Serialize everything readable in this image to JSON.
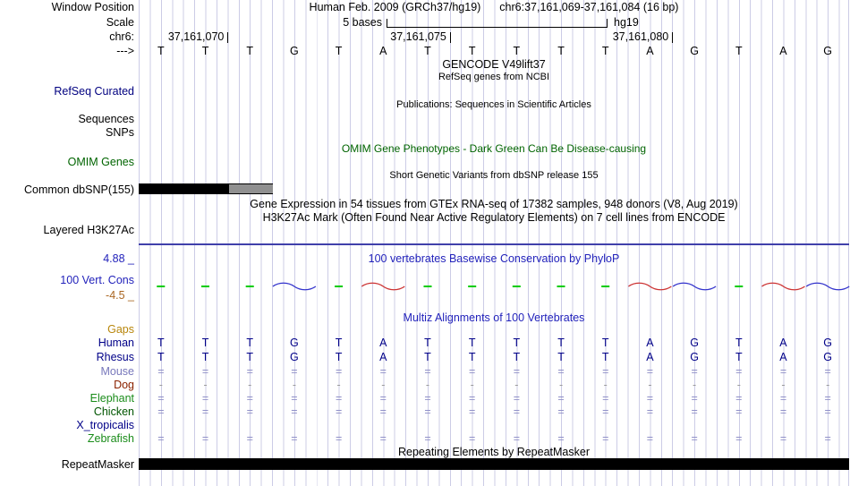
{
  "header": {
    "assembly": "Human Feb. 2009 (GRCh37/hg19)",
    "position": "chr6:37,161,069-37,161,084 (16 bp)"
  },
  "labels": {
    "window_position": "Window Position",
    "scale": "Scale",
    "chrom": "chr6:",
    "strand_arrow": "--->",
    "refseq_curated": "RefSeq Curated",
    "sequences": "Sequences",
    "snps": "SNPs",
    "omim_genes": "OMIM Genes",
    "common_dbsnp": "Common dbSNP(155)",
    "layered_h3k27ac": "Layered H3K27Ac",
    "cons_max": "4.88 _",
    "cons_track": "100 Vert. Cons",
    "cons_min": "-4.5 _",
    "repeatmasker": "RepeatMasker"
  },
  "scale_bar": {
    "text": "5 bases",
    "genome": "hg19"
  },
  "ruler_ticks": [
    {
      "label": "37,161,070",
      "base_index": 1
    },
    {
      "label": "37,161,075",
      "base_index": 6
    },
    {
      "label": "37,161,080",
      "base_index": 11
    }
  ],
  "sequence_bases": [
    "T",
    "T",
    "T",
    "G",
    "T",
    "A",
    "T",
    "T",
    "T",
    "T",
    "T",
    "A",
    "G",
    "T",
    "A",
    "G"
  ],
  "center_titles": {
    "gencode": "GENCODE V49lift37",
    "refseq_desc": "RefSeq genes from NCBI",
    "publications": "Publications: Sequences in Scientific Articles",
    "omim": "OMIM Gene Phenotypes - Dark Green Can Be Disease-causing",
    "dbsnp": "Short Genetic Variants from dbSNP release 155",
    "gtex": "Gene Expression in 54 tissues from GTEx RNA-seq of 17382 samples, 948 donors (V8, Aug 2019)",
    "h3k27ac": "H3K27Ac Mark (Often Found Near Active Regulatory Elements) on 7 cell lines from ENCODE",
    "phylop": "100 vertebrates Basewise Conservation by PhyloP",
    "multiz": "Multiz Alignments of 100 Vertebrates",
    "repeat": "Repeating Elements by RepeatMasker"
  },
  "colors": {
    "grid": "#cccce6",
    "title_blue": "#2222bb",
    "refseq_blue": "#000080",
    "omim_green": "#006400",
    "gaps_orange": "#b8860b",
    "cons_min_orange": "#aa6622",
    "h3k27ac_line": "#4040aa",
    "bar_black": "#000000",
    "bar_gray": "#909090"
  },
  "alignment_rows": [
    {
      "name": "Gaps",
      "name_color": "#b8860b",
      "cell_color": "#9191c8",
      "cells": []
    },
    {
      "name": "Human",
      "name_color": "#000088",
      "cell_color": "#000088",
      "cells": [
        "T",
        "T",
        "T",
        "G",
        "T",
        "A",
        "T",
        "T",
        "T",
        "T",
        "T",
        "A",
        "G",
        "T",
        "A",
        "G"
      ]
    },
    {
      "name": "Rhesus",
      "name_color": "#000088",
      "cell_color": "#000088",
      "cells": [
        "T",
        "T",
        "T",
        "G",
        "T",
        "A",
        "T",
        "T",
        "T",
        "T",
        "T",
        "A",
        "G",
        "T",
        "A",
        "G"
      ]
    },
    {
      "name": "Mouse",
      "name_color": "#7777bb",
      "cell_color": "#9191c8",
      "cells": [
        "=",
        "=",
        "=",
        "=",
        "=",
        "=",
        "=",
        "=",
        "=",
        "=",
        "=",
        "=",
        "=",
        "=",
        "=",
        "="
      ]
    },
    {
      "name": "Dog",
      "name_color": "#8b2200",
      "cell_color": "#9a9a9a",
      "cells": [
        "-",
        "-",
        "-",
        "-",
        "-",
        "-",
        "-",
        "-",
        "-",
        "-",
        "-",
        "-",
        "-",
        "-",
        "-",
        "-"
      ]
    },
    {
      "name": "Elephant",
      "name_color": "#1a8c1a",
      "cell_color": "#9191c8",
      "cells": [
        "=",
        "=",
        "=",
        "=",
        "=",
        "=",
        "=",
        "=",
        "=",
        "=",
        "=",
        "=",
        "=",
        "=",
        "=",
        "="
      ]
    },
    {
      "name": "Chicken",
      "name_color": "#005500",
      "cell_color": "#9191c8",
      "cells": [
        "=",
        "=",
        "=",
        "=",
        "=",
        "=",
        "=",
        "=",
        "=",
        "=",
        "=",
        "=",
        "=",
        "=",
        "=",
        "="
      ]
    },
    {
      "name": "X_tropicalis",
      "name_color": "#000088",
      "cell_color": "#9191c8",
      "cells": []
    },
    {
      "name": "Zebrafish",
      "name_color": "#1a8c1a",
      "cell_color": "#9191c8",
      "cells": [
        "=",
        "=",
        "=",
        "=",
        "=",
        "=",
        "=",
        "=",
        "=",
        "=",
        "=",
        "=",
        "=",
        "=",
        "=",
        "="
      ]
    }
  ],
  "conservation": {
    "dash_color": "#00cc00",
    "dash_base_indexes": [
      0,
      1,
      2,
      4,
      6,
      7,
      8,
      9,
      10,
      13
    ],
    "waves": [
      {
        "base_index": 3,
        "color": "#3333cc"
      },
      {
        "base_index": 5,
        "color": "#cc3333"
      },
      {
        "base_index": 11,
        "color": "#cc3333"
      },
      {
        "base_index": 12,
        "color": "#3333cc"
      },
      {
        "base_index": 14,
        "color": "#cc3333"
      },
      {
        "base_index": 15,
        "color": "#3333cc"
      }
    ]
  }
}
